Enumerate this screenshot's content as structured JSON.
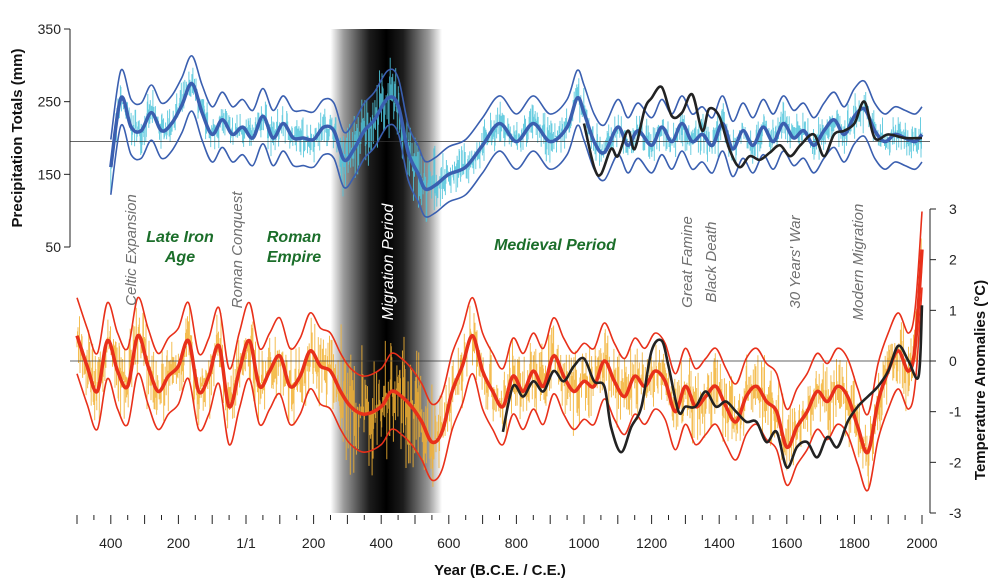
{
  "chart_data": {
    "type": "line",
    "x_axis": {
      "label": "Year (B.C.E. / C.E.)",
      "range": [
        -500,
        2000
      ],
      "ticks": [
        -400,
        -200,
        0,
        200,
        400,
        600,
        800,
        1000,
        1200,
        1400,
        1600,
        1800,
        2000
      ],
      "tick_labels": [
        "400",
        "200",
        "1/1",
        "200",
        "400",
        "600",
        "800",
        "1000",
        "1200",
        "1400",
        "1600",
        "1800",
        "2000"
      ]
    },
    "precip_axis": {
      "label": "Precipitation Totals (mm)",
      "side": "left",
      "range": [
        50,
        350
      ],
      "ticks": [
        50,
        150,
        250,
        350
      ],
      "tick_labels": [
        "50",
        "150",
        "250",
        "350"
      ],
      "reference": 195
    },
    "temp_axis": {
      "label": "Temperature Anomalies (°C)",
      "side": "right",
      "range": [
        -3,
        3
      ],
      "ticks": [
        -3,
        -2,
        -1,
        0,
        1,
        2,
        3
      ],
      "tick_labels": [
        "-3",
        "-2",
        "-1",
        "0",
        "1",
        "2",
        "3"
      ],
      "reference": 0
    },
    "shaded_period": {
      "label": "Migration Period",
      "start": 250,
      "end": 580
    },
    "period_labels": {
      "green": [
        {
          "text": "Late Iron",
          "year": -260
        },
        {
          "text": "Age",
          "year": -260
        },
        {
          "text": "Roman",
          "year": 100
        },
        {
          "text": "Empire",
          "year": 100
        },
        {
          "text": "Medieval Period",
          "year": 830
        }
      ],
      "grey": [
        {
          "text": "Celtic Expansion",
          "year": -375
        },
        {
          "text": "Roman Conquest",
          "year": -30
        },
        {
          "text": "Great Famine",
          "year": 1315
        },
        {
          "text": "Black Death",
          "year": 1350
        },
        {
          "text": "30 Years' War",
          "year": 1630
        },
        {
          "text": "Modern Migration",
          "year": 1840
        }
      ]
    },
    "series": [
      {
        "name": "Precipitation reconstruction (smoothed)",
        "color": "#3a5fb0",
        "axis": "precip",
        "points": [
          [
            -400,
            160
          ],
          [
            -370,
            255
          ],
          [
            -340,
            215
          ],
          [
            -310,
            210
          ],
          [
            -280,
            235
          ],
          [
            -250,
            210
          ],
          [
            -220,
            220
          ],
          [
            -190,
            245
          ],
          [
            -160,
            275
          ],
          [
            -130,
            235
          ],
          [
            -100,
            205
          ],
          [
            -70,
            225
          ],
          [
            -40,
            205
          ],
          [
            -10,
            215
          ],
          [
            20,
            200
          ],
          [
            50,
            230
          ],
          [
            80,
            200
          ],
          [
            110,
            220
          ],
          [
            140,
            200
          ],
          [
            170,
            200
          ],
          [
            200,
            198
          ],
          [
            230,
            215
          ],
          [
            260,
            210
          ],
          [
            290,
            170
          ],
          [
            320,
            185
          ],
          [
            350,
            210
          ],
          [
            380,
            225
          ],
          [
            420,
            255
          ],
          [
            450,
            245
          ],
          [
            480,
            180
          ],
          [
            510,
            150
          ],
          [
            530,
            130
          ],
          [
            560,
            135
          ],
          [
            600,
            150
          ],
          [
            650,
            160
          ],
          [
            700,
            190
          ],
          [
            750,
            220
          ],
          [
            800,
            195
          ],
          [
            850,
            220
          ],
          [
            900,
            195
          ],
          [
            950,
            215
          ],
          [
            980,
            255
          ],
          [
            1000,
            235
          ],
          [
            1030,
            195
          ],
          [
            1060,
            180
          ],
          [
            1100,
            215
          ],
          [
            1130,
            190
          ],
          [
            1160,
            210
          ],
          [
            1200,
            190
          ],
          [
            1230,
            215
          ],
          [
            1260,
            195
          ],
          [
            1290,
            220
          ],
          [
            1320,
            195
          ],
          [
            1350,
            205
          ],
          [
            1380,
            190
          ],
          [
            1410,
            220
          ],
          [
            1440,
            185
          ],
          [
            1470,
            210
          ],
          [
            1500,
            190
          ],
          [
            1530,
            215
          ],
          [
            1560,
            195
          ],
          [
            1590,
            220
          ],
          [
            1620,
            200
          ],
          [
            1650,
            210
          ],
          [
            1680,
            190
          ],
          [
            1710,
            210
          ],
          [
            1740,
            225
          ],
          [
            1770,
            205
          ],
          [
            1800,
            230
          ],
          [
            1830,
            240
          ],
          [
            1860,
            210
          ],
          [
            1890,
            195
          ],
          [
            1920,
            205
          ],
          [
            1950,
            200
          ],
          [
            1980,
            195
          ],
          [
            2000,
            205
          ]
        ]
      },
      {
        "name": "Precipitation confidence bands",
        "color": "#3a5fb0",
        "axis": "precip",
        "offsets": [
          -38,
          38
        ]
      },
      {
        "name": "Precipitation instrumental record",
        "color": "#222222",
        "axis": "precip",
        "points": [
          [
            1000,
            220
          ],
          [
            1030,
            160
          ],
          [
            1050,
            150
          ],
          [
            1080,
            185
          ],
          [
            1100,
            175
          ],
          [
            1130,
            210
          ],
          [
            1150,
            185
          ],
          [
            1180,
            240
          ],
          [
            1200,
            255
          ],
          [
            1230,
            270
          ],
          [
            1260,
            230
          ],
          [
            1290,
            235
          ],
          [
            1320,
            260
          ],
          [
            1350,
            210
          ],
          [
            1370,
            240
          ],
          [
            1400,
            230
          ],
          [
            1430,
            185
          ],
          [
            1460,
            160
          ],
          [
            1490,
            175
          ],
          [
            1520,
            170
          ],
          [
            1550,
            180
          ],
          [
            1580,
            190
          ],
          [
            1610,
            175
          ],
          [
            1640,
            190
          ],
          [
            1680,
            205
          ],
          [
            1710,
            175
          ],
          [
            1740,
            205
          ],
          [
            1770,
            210
          ],
          [
            1800,
            220
          ],
          [
            1830,
            250
          ],
          [
            1860,
            200
          ],
          [
            1900,
            205
          ],
          [
            1950,
            200
          ],
          [
            2000,
            200
          ]
        ]
      },
      {
        "name": "Temperature reconstruction (smoothed)",
        "color": "#e8301a",
        "axis": "temp",
        "points": [
          [
            -500,
            0.5
          ],
          [
            -470,
            -0.1
          ],
          [
            -440,
            -0.6
          ],
          [
            -410,
            0.4
          ],
          [
            -380,
            -0.2
          ],
          [
            -350,
            -0.5
          ],
          [
            -320,
            0.5
          ],
          [
            -290,
            -0.1
          ],
          [
            -260,
            -0.6
          ],
          [
            -230,
            -0.3
          ],
          [
            -200,
            -0.1
          ],
          [
            -170,
            0.4
          ],
          [
            -140,
            -0.6
          ],
          [
            -110,
            -0.3
          ],
          [
            -80,
            0.3
          ],
          [
            -50,
            -0.9
          ],
          [
            -20,
            -0.2
          ],
          [
            10,
            0.4
          ],
          [
            40,
            -0.5
          ],
          [
            70,
            -0.2
          ],
          [
            100,
            0.1
          ],
          [
            130,
            -0.5
          ],
          [
            160,
            -0.3
          ],
          [
            190,
            0.2
          ],
          [
            220,
            -0.1
          ],
          [
            250,
            -0.2
          ],
          [
            280,
            -0.6
          ],
          [
            310,
            -0.9
          ],
          [
            350,
            -1.05
          ],
          [
            400,
            -0.9
          ],
          [
            430,
            -0.6
          ],
          [
            460,
            -0.7
          ],
          [
            490,
            -0.9
          ],
          [
            520,
            -1.2
          ],
          [
            550,
            -1.6
          ],
          [
            580,
            -1.4
          ],
          [
            610,
            -0.6
          ],
          [
            640,
            -0.1
          ],
          [
            670,
            0.5
          ],
          [
            700,
            -0.2
          ],
          [
            730,
            -0.6
          ],
          [
            760,
            -0.9
          ],
          [
            790,
            -0.3
          ],
          [
            820,
            -0.6
          ],
          [
            850,
            -0.2
          ],
          [
            880,
            -0.5
          ],
          [
            910,
            0.1
          ],
          [
            940,
            -0.3
          ],
          [
            970,
            -0.6
          ],
          [
            1000,
            -0.4
          ],
          [
            1030,
            -0.5
          ],
          [
            1060,
            0.0
          ],
          [
            1090,
            -0.4
          ],
          [
            1120,
            -0.7
          ],
          [
            1150,
            -0.3
          ],
          [
            1180,
            -0.5
          ],
          [
            1210,
            -0.2
          ],
          [
            1240,
            -0.4
          ],
          [
            1270,
            -1.0
          ],
          [
            1300,
            -0.5
          ],
          [
            1330,
            -0.9
          ],
          [
            1360,
            -0.7
          ],
          [
            1390,
            -0.5
          ],
          [
            1420,
            -0.9
          ],
          [
            1450,
            -1.2
          ],
          [
            1480,
            -0.7
          ],
          [
            1510,
            -0.5
          ],
          [
            1540,
            -0.8
          ],
          [
            1570,
            -1.0
          ],
          [
            1600,
            -1.7
          ],
          [
            1630,
            -1.3
          ],
          [
            1660,
            -1.0
          ],
          [
            1690,
            -0.6
          ],
          [
            1720,
            -0.8
          ],
          [
            1750,
            -0.5
          ],
          [
            1780,
            -0.7
          ],
          [
            1810,
            -1.3
          ],
          [
            1840,
            -1.8
          ],
          [
            1870,
            -0.8
          ],
          [
            1900,
            -0.2
          ],
          [
            1930,
            0.2
          ],
          [
            1960,
            -0.2
          ],
          [
            1980,
            0.3
          ],
          [
            2000,
            2.2
          ]
        ]
      },
      {
        "name": "Temperature confidence bands",
        "color": "#e8301a",
        "axis": "temp",
        "offsets": [
          -0.75,
          0.75
        ]
      },
      {
        "name": "Temperature instrumental record",
        "color": "#222222",
        "axis": "temp",
        "points": [
          [
            760,
            -1.4
          ],
          [
            790,
            -0.5
          ],
          [
            820,
            -0.7
          ],
          [
            850,
            -0.4
          ],
          [
            880,
            -0.6
          ],
          [
            910,
            -0.2
          ],
          [
            940,
            -0.4
          ],
          [
            970,
            -0.1
          ],
          [
            1000,
            0.05
          ],
          [
            1030,
            -0.4
          ],
          [
            1060,
            -0.5
          ],
          [
            1080,
            -1.3
          ],
          [
            1110,
            -1.8
          ],
          [
            1140,
            -1.3
          ],
          [
            1170,
            -0.9
          ],
          [
            1200,
            0.2
          ],
          [
            1230,
            0.4
          ],
          [
            1250,
            -0.1
          ],
          [
            1280,
            -1.0
          ],
          [
            1300,
            -0.9
          ],
          [
            1330,
            -0.9
          ],
          [
            1360,
            -0.6
          ],
          [
            1390,
            -0.9
          ],
          [
            1420,
            -0.8
          ],
          [
            1450,
            -1.0
          ],
          [
            1480,
            -1.2
          ],
          [
            1510,
            -1.2
          ],
          [
            1540,
            -1.6
          ],
          [
            1570,
            -1.4
          ],
          [
            1600,
            -2.1
          ],
          [
            1630,
            -1.7
          ],
          [
            1660,
            -1.6
          ],
          [
            1690,
            -1.9
          ],
          [
            1720,
            -1.5
          ],
          [
            1750,
            -1.7
          ],
          [
            1780,
            -1.2
          ],
          [
            1810,
            -0.9
          ],
          [
            1840,
            -0.7
          ],
          [
            1870,
            -0.5
          ],
          [
            1900,
            -0.2
          ],
          [
            1930,
            0.3
          ],
          [
            1960,
            0.0
          ],
          [
            1990,
            -0.3
          ],
          [
            2000,
            1.1
          ]
        ]
      }
    ]
  }
}
